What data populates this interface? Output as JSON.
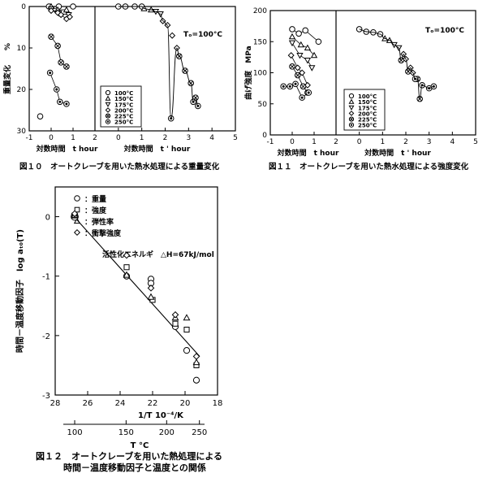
{
  "figures": {
    "fig10": {
      "caption": "図１０　オートクレーブを用いた熱水処理による重量変化"
    },
    "fig11": {
      "caption": "図１１　オートクレーブを用いた熱水処理による強度変化"
    },
    "fig12": {
      "caption_line1": "図１２　オートクレーブを用いた熱処理による",
      "caption_line2": "時間－温度移動因子と温度との関係"
    }
  },
  "chart_data": [
    {
      "id": "fig10",
      "type": "scatter",
      "ylabel": "重量変化　　%",
      "xlabel": "対数時間　t hour",
      "xlabel2": "対数時間　t ' hour",
      "master_note": "Tₒ=100°C",
      "legend": [
        "100°C",
        "150°C",
        "175°C",
        "200°C",
        "225°C",
        "250°C"
      ],
      "left_ticks_x": [
        "-1",
        "0",
        "1",
        "2"
      ],
      "right_ticks_x": [
        "0",
        "1",
        "2",
        "3",
        "4",
        "5"
      ],
      "ticks_y": [
        "0",
        "10",
        "20",
        "30"
      ],
      "xlim_left": [
        -1,
        2
      ],
      "xlim_right": [
        -1,
        5
      ],
      "ylim": [
        0,
        30
      ],
      "left_series": [
        {
          "marker": "circle",
          "points": [
            [
              -0.1,
              0
            ],
            [
              0.35,
              0
            ],
            [
              1.0,
              0
            ]
          ]
        },
        {
          "marker": "triangle",
          "points": [
            [
              0,
              0
            ],
            [
              0.3,
              0.8
            ],
            [
              0.7,
              0.8
            ]
          ]
        },
        {
          "marker": "invtriangle",
          "points": [
            [
              0,
              0.6
            ],
            [
              0.35,
              1.6
            ],
            [
              0.8,
              2.0
            ]
          ]
        },
        {
          "marker": "diamond",
          "points": [
            [
              0,
              1.0
            ],
            [
              0.3,
              1.5
            ],
            [
              0.45,
              2.0
            ],
            [
              0.7,
              3.0
            ],
            [
              0.85,
              2.5
            ]
          ]
        },
        {
          "marker": "xcircle",
          "points": [
            [
              0,
              7.3
            ],
            [
              0.3,
              9.5
            ],
            [
              0.45,
              13.5
            ],
            [
              0.7,
              14.5
            ]
          ]
        },
        {
          "marker": "dotcircle",
          "points": [
            [
              -0.05,
              16
            ],
            [
              0.25,
              20
            ],
            [
              0.4,
              23
            ],
            [
              0.7,
              23.5
            ]
          ]
        },
        {
          "marker": "circle",
          "points": [
            [
              -0.5,
              26.5
            ]
          ]
        }
      ],
      "right_series": [
        {
          "marker": "circle",
          "points": [
            [
              0,
              0
            ],
            [
              0.3,
              0
            ],
            [
              0.7,
              0
            ],
            [
              1.0,
              0
            ]
          ]
        },
        {
          "marker": "triangle",
          "points": [
            [
              1.1,
              0.5
            ],
            [
              1.4,
              0.8
            ]
          ]
        },
        {
          "marker": "invtriangle",
          "points": [
            [
              1.6,
              1.2
            ],
            [
              1.8,
              1.8
            ]
          ]
        },
        {
          "marker": "diamond",
          "points": [
            [
              1.9,
              3.5
            ],
            [
              2.1,
              4.5
            ],
            [
              2.3,
              7
            ],
            [
              2.5,
              10
            ]
          ]
        },
        {
          "marker": "xcircle",
          "points": [
            [
              2.6,
              12
            ],
            [
              2.85,
              15.5
            ],
            [
              3.1,
              18.5
            ],
            [
              3.3,
              22
            ]
          ]
        },
        {
          "marker": "dotcircle",
          "points": [
            [
              3.2,
              23
            ],
            [
              3.4,
              24
            ],
            [
              2.25,
              27
            ]
          ]
        }
      ]
    },
    {
      "id": "fig11",
      "type": "scatter",
      "ylabel": "曲げ強度　MPa",
      "xlabel": "対数時間　t hour",
      "xlabel2": "対数時間　t ' hour",
      "master_note": "Tₒ=100°C",
      "legend": [
        "100°C",
        "150°C",
        "175°C",
        "200°C",
        "225°C",
        "250°C"
      ],
      "left_ticks_x": [
        "-1",
        "0",
        "1",
        "2"
      ],
      "right_ticks_x": [
        "0",
        "1",
        "2",
        "3",
        "4",
        "5"
      ],
      "ticks_y": [
        "0",
        "50",
        "100",
        "150",
        "200"
      ],
      "xlim_left": [
        -1,
        2
      ],
      "xlim_right": [
        -1,
        5
      ],
      "ylim": [
        0,
        200
      ],
      "left_series": [
        {
          "marker": "circle",
          "points": [
            [
              0,
              170
            ],
            [
              0.3,
              163
            ],
            [
              0.6,
              168
            ],
            [
              1.2,
              150
            ]
          ]
        },
        {
          "marker": "triangle",
          "points": [
            [
              0,
              158
            ],
            [
              0.4,
              145
            ],
            [
              0.7,
              140
            ],
            [
              1.0,
              128
            ]
          ]
        },
        {
          "marker": "invtriangle",
          "points": [
            [
              0,
              148
            ],
            [
              0.35,
              128
            ],
            [
              0.7,
              120
            ],
            [
              0.9,
              108
            ]
          ]
        },
        {
          "marker": "diamond",
          "points": [
            [
              -0.05,
              128
            ],
            [
              0.25,
              108
            ],
            [
              0.45,
              100
            ],
            [
              0.7,
              80
            ]
          ]
        },
        {
          "marker": "xcircle",
          "points": [
            [
              0,
              110
            ],
            [
              0.25,
              96
            ],
            [
              0.5,
              78
            ],
            [
              0.7,
              68
            ]
          ]
        },
        {
          "marker": "dotcircle",
          "points": [
            [
              -0.4,
              78
            ],
            [
              -0.1,
              78
            ],
            [
              0.15,
              82
            ],
            [
              0.45,
              60
            ],
            [
              0.75,
              68
            ]
          ]
        }
      ],
      "right_series": [
        {
          "marker": "circle",
          "points": [
            [
              0,
              170
            ],
            [
              0.3,
              166
            ],
            [
              0.6,
              165
            ],
            [
              0.9,
              162
            ]
          ]
        },
        {
          "marker": "triangle",
          "points": [
            [
              1.1,
              155
            ],
            [
              1.3,
              152
            ]
          ]
        },
        {
          "marker": "invtriangle",
          "points": [
            [
              1.5,
              145
            ],
            [
              1.7,
              140
            ]
          ]
        },
        {
          "marker": "diamond",
          "points": [
            [
              1.9,
              130
            ],
            [
              2.0,
              122
            ],
            [
              2.2,
              108
            ],
            [
              2.3,
              100
            ]
          ]
        },
        {
          "marker": "xcircle",
          "points": [
            [
              1.8,
              120
            ],
            [
              2.1,
              102
            ],
            [
              2.5,
              90
            ],
            [
              2.6,
              58
            ]
          ]
        },
        {
          "marker": "dotcircle",
          "points": [
            [
              2.4,
              90
            ],
            [
              2.7,
              80
            ],
            [
              3.0,
              75
            ],
            [
              3.2,
              78
            ]
          ]
        }
      ]
    },
    {
      "id": "fig12",
      "type": "scatter",
      "ylabel": "時間－温度移動因子　log aₜ₀(T)",
      "xlabel": "1/T  10⁻⁴/K",
      "xlabel_bottom": "T °C",
      "activation_note": "活性化エネルギ　△H=67kJ/mol",
      "legend": [
        {
          "marker": "circle",
          "label": "：重量"
        },
        {
          "marker": "square",
          "label": "：強度"
        },
        {
          "marker": "triangle",
          "label": "：弾性率"
        },
        {
          "marker": "diamond",
          "label": "：衝撃強度"
        }
      ],
      "ticks_x_top": [
        "28",
        "26",
        "24",
        "22",
        "20",
        "18"
      ],
      "ticks_x_bottom": [
        "100",
        "150",
        "200",
        "250"
      ],
      "ticks_y": [
        "0",
        "-1",
        "-2",
        "-3"
      ],
      "xlim": [
        28,
        18
      ],
      "ylim": [
        -3,
        0.5
      ],
      "fit_line": [
        [
          27.0,
          0.05
        ],
        [
          19.1,
          -2.35
        ]
      ],
      "series": [
        {
          "marker": "circle",
          "points": [
            [
              26.8,
              0.0
            ],
            [
              23.6,
              -1.0
            ],
            [
              22.1,
              -1.05
            ],
            [
              22.1,
              -1.12
            ],
            [
              20.6,
              -1.85
            ],
            [
              19.9,
              -2.25
            ],
            [
              19.3,
              -2.75
            ]
          ]
        },
        {
          "marker": "square",
          "points": [
            [
              26.8,
              0.02
            ],
            [
              23.6,
              -0.85
            ],
            [
              22.0,
              -1.4
            ],
            [
              20.6,
              -1.8
            ],
            [
              19.9,
              -1.9
            ],
            [
              19.3,
              -2.5
            ]
          ]
        },
        {
          "marker": "triangle",
          "points": [
            [
              26.8,
              0.03
            ],
            [
              23.6,
              -0.98
            ],
            [
              22.1,
              -1.35
            ],
            [
              20.6,
              -1.7
            ],
            [
              19.9,
              -1.7
            ],
            [
              19.3,
              -2.45
            ]
          ]
        },
        {
          "marker": "diamond",
          "points": [
            [
              26.8,
              0.05
            ],
            [
              23.6,
              -0.65
            ],
            [
              22.1,
              -1.2
            ],
            [
              20.6,
              -1.65
            ],
            [
              19.3,
              -2.35
            ]
          ]
        }
      ]
    }
  ]
}
